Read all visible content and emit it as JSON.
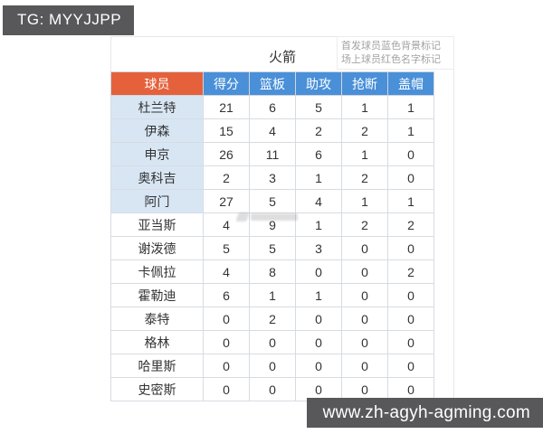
{
  "badge": {
    "text": "TG: MYYJJPP"
  },
  "card": {
    "title": "火箭",
    "legend": {
      "line1": "首发球员蓝色背景标记",
      "line2": "场上球员红色名字标记"
    }
  },
  "table": {
    "columns": [
      "球员",
      "得分",
      "篮板",
      "助攻",
      "抢断",
      "盖帽"
    ],
    "rows": [
      {
        "name": "杜兰特",
        "starter": true,
        "stats": [
          21,
          6,
          5,
          1,
          1
        ]
      },
      {
        "name": "伊森",
        "starter": true,
        "stats": [
          15,
          4,
          2,
          2,
          1
        ]
      },
      {
        "name": "申京",
        "starter": true,
        "stats": [
          26,
          11,
          6,
          1,
          0
        ]
      },
      {
        "name": "奥科吉",
        "starter": true,
        "stats": [
          2,
          3,
          1,
          2,
          0
        ]
      },
      {
        "name": "阿门",
        "starter": true,
        "stats": [
          27,
          5,
          4,
          1,
          1
        ]
      },
      {
        "name": "亚当斯",
        "starter": false,
        "stats": [
          4,
          9,
          1,
          2,
          2
        ]
      },
      {
        "name": "谢泼德",
        "starter": false,
        "stats": [
          5,
          5,
          3,
          0,
          0
        ]
      },
      {
        "name": "卡佩拉",
        "starter": false,
        "stats": [
          4,
          8,
          0,
          0,
          2
        ]
      },
      {
        "name": "霍勒迪",
        "starter": false,
        "stats": [
          6,
          1,
          1,
          0,
          0
        ]
      },
      {
        "name": "泰特",
        "starter": false,
        "stats": [
          0,
          2,
          0,
          0,
          0
        ]
      },
      {
        "name": "格林",
        "starter": false,
        "stats": [
          0,
          0,
          0,
          0,
          0
        ]
      },
      {
        "name": "哈里斯",
        "starter": false,
        "stats": [
          0,
          0,
          0,
          0,
          0
        ]
      },
      {
        "name": "史密斯",
        "starter": false,
        "stats": [
          0,
          0,
          0,
          0,
          0
        ]
      }
    ]
  },
  "footer": {
    "url": "www.zh-agyh-agming.com"
  },
  "colors": {
    "orange_header": "#e5613c",
    "blue_header": "#4a90d8",
    "starter_row_bg": "#d8e6f4",
    "badge_bg": "#58585a"
  }
}
